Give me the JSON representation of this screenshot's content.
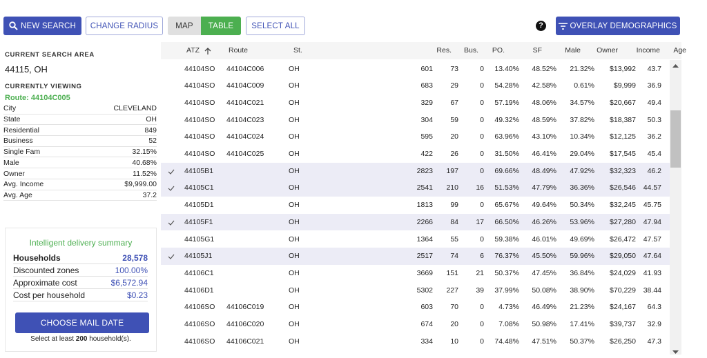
{
  "toolbar": {
    "new_search": "NEW SEARCH",
    "change_radius": "CHANGE RADIUS",
    "map": "MAP",
    "table": "TABLE",
    "select_all": "SELECT ALL",
    "help": "?",
    "overlay": "OVERLAY DEMOGRAPHICS"
  },
  "sidebar": {
    "search_area_label": "CURRENT SEARCH AREA",
    "search_area": "44115, OH",
    "viewing_label": "CURRENTLY VIEWING",
    "route": "Route: 44104C005",
    "details": [
      [
        "City",
        "CLEVELAND"
      ],
      [
        "State",
        "OH"
      ],
      [
        "Residential",
        "849"
      ],
      [
        "Business",
        "52"
      ],
      [
        "Single Fam",
        "32.15%"
      ],
      [
        "Male",
        "40.68%"
      ],
      [
        "Owner",
        "11.52%"
      ],
      [
        "Avg. Income",
        "$9,999.00"
      ],
      [
        "Avg. Age",
        "37.2"
      ]
    ]
  },
  "summary": {
    "title": "Intelligent delivery summary",
    "rows": [
      [
        "Households",
        "28,578"
      ],
      [
        "Discounted zones",
        "100.00%"
      ],
      [
        "Approximate cost",
        "$6,572.94"
      ],
      [
        "Cost per household",
        "$0.23"
      ]
    ],
    "button": "CHOOSE MAIL DATE",
    "note_prefix": "Select at least",
    "note_count": "200",
    "note_suffix": "household(s)."
  },
  "table": {
    "columns": [
      "ATZ",
      "Route",
      "St.",
      "Res.",
      "Bus.",
      "PO.",
      "SF",
      "Male",
      "Owner",
      "Income",
      "Age"
    ],
    "rows": [
      {
        "selected": false,
        "cells": [
          "44104SO",
          "44104C006",
          "OH",
          "601",
          "73",
          "0",
          "13.40%",
          "48.52%",
          "21.32%",
          "$13,992",
          "43.7"
        ]
      },
      {
        "selected": false,
        "cells": [
          "44104SO",
          "44104C009",
          "OH",
          "683",
          "29",
          "0",
          "54.28%",
          "42.58%",
          "0.61%",
          "$9,999",
          "36.9"
        ]
      },
      {
        "selected": false,
        "cells": [
          "44104SO",
          "44104C021",
          "OH",
          "329",
          "67",
          "0",
          "57.19%",
          "48.06%",
          "34.57%",
          "$20,667",
          "49.4"
        ]
      },
      {
        "selected": false,
        "cells": [
          "44104SO",
          "44104C023",
          "OH",
          "304",
          "59",
          "0",
          "49.32%",
          "48.59%",
          "37.82%",
          "$18,387",
          "50.3"
        ]
      },
      {
        "selected": false,
        "cells": [
          "44104SO",
          "44104C024",
          "OH",
          "595",
          "20",
          "0",
          "63.96%",
          "43.10%",
          "10.34%",
          "$12,125",
          "36.2"
        ]
      },
      {
        "selected": false,
        "cells": [
          "44104SO",
          "44104C025",
          "OH",
          "422",
          "26",
          "0",
          "31.50%",
          "46.41%",
          "29.04%",
          "$17,545",
          "45.4"
        ]
      },
      {
        "selected": true,
        "cells": [
          "44105B1",
          null,
          "OH",
          "2823",
          "197",
          "0",
          "69.66%",
          "48.49%",
          "47.92%",
          "$32,323",
          "46.2"
        ]
      },
      {
        "selected": true,
        "cells": [
          "44105C1",
          null,
          "OH",
          "2541",
          "210",
          "16",
          "51.53%",
          "47.79%",
          "36.36%",
          "$26,546",
          "44.57"
        ]
      },
      {
        "selected": false,
        "cells": [
          "44105D1",
          null,
          "OH",
          "1813",
          "99",
          "0",
          "65.67%",
          "49.64%",
          "50.34%",
          "$32,245",
          "45.75"
        ]
      },
      {
        "selected": true,
        "cells": [
          "44105F1",
          null,
          "OH",
          "2266",
          "84",
          "17",
          "66.50%",
          "46.26%",
          "53.96%",
          "$27,280",
          "47.94"
        ]
      },
      {
        "selected": false,
        "cells": [
          "44105G1",
          null,
          "OH",
          "1364",
          "55",
          "0",
          "59.38%",
          "46.01%",
          "49.69%",
          "$26,472",
          "47.57"
        ]
      },
      {
        "selected": true,
        "cells": [
          "44105J1",
          null,
          "OH",
          "2517",
          "74",
          "6",
          "76.37%",
          "45.50%",
          "59.96%",
          "$29,050",
          "47.64"
        ]
      },
      {
        "selected": false,
        "cells": [
          "44106C1",
          null,
          "OH",
          "3669",
          "151",
          "21",
          "50.37%",
          "47.45%",
          "36.84%",
          "$24,029",
          "41.93"
        ]
      },
      {
        "selected": false,
        "cells": [
          "44106D1",
          null,
          "OH",
          "5302",
          "227",
          "39",
          "37.99%",
          "50.08%",
          "38.90%",
          "$70,229",
          "38.44"
        ]
      },
      {
        "selected": false,
        "cells": [
          "44106SO",
          "44106C019",
          "OH",
          "603",
          "70",
          "0",
          "4.73%",
          "46.49%",
          "21.23%",
          "$24,167",
          "64.3"
        ]
      },
      {
        "selected": false,
        "cells": [
          "44106SO",
          "44106C020",
          "OH",
          "674",
          "20",
          "0",
          "7.08%",
          "50.98%",
          "17.41%",
          "$39,737",
          "32.9"
        ]
      },
      {
        "selected": false,
        "cells": [
          "44106SO",
          "44106C021",
          "OH",
          "334",
          "10",
          "0",
          "74.48%",
          "47.51%",
          "50.37%",
          "$26,250",
          "47.3"
        ]
      }
    ]
  }
}
